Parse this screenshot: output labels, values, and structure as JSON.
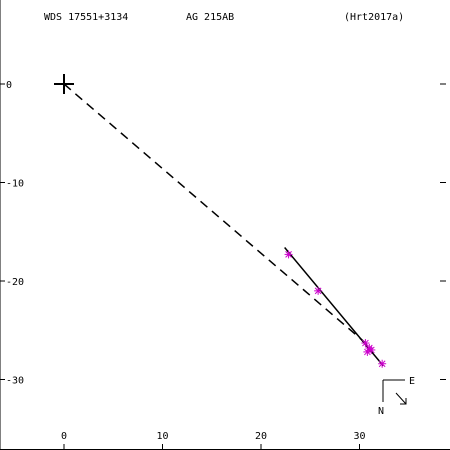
{
  "header": {
    "wds_id": "WDS 17551+3134",
    "designation": "AG  215AB",
    "reference": "(Hrt2017a)"
  },
  "compass": {
    "east_label": "E",
    "north_label": "N"
  },
  "colors": {
    "axes": "#000000",
    "observations": "#cc00cc",
    "primary": "#000000"
  },
  "chart_data": {
    "type": "scatter",
    "xlim": [
      -6,
      38
    ],
    "ylim": [
      -37,
      7
    ],
    "x_ticks": [
      0,
      10,
      20,
      30
    ],
    "y_ticks": [
      0,
      -10,
      -20,
      -30
    ],
    "x_tick_labels": [
      "0",
      "10",
      "20",
      "30"
    ],
    "y_tick_labels": [
      "0",
      "-10",
      "-20",
      "-30"
    ],
    "primary": {
      "x": 0,
      "y": 0
    },
    "observations": [
      {
        "x": 22.8,
        "y": -17.3
      },
      {
        "x": 25.8,
        "y": -21.0
      },
      {
        "x": 30.6,
        "y": -26.3
      },
      {
        "x": 30.8,
        "y": -27.2
      },
      {
        "x": 31.0,
        "y": -26.8
      },
      {
        "x": 31.2,
        "y": -27.0
      },
      {
        "x": 32.3,
        "y": -28.4
      }
    ],
    "orbit_arc": [
      {
        "x": 22.4,
        "y": -16.6
      },
      {
        "x": 32.4,
        "y": -28.6
      }
    ],
    "dashed_line_to": {
      "x": 31.2,
      "y": -26.8
    },
    "grid": false
  }
}
